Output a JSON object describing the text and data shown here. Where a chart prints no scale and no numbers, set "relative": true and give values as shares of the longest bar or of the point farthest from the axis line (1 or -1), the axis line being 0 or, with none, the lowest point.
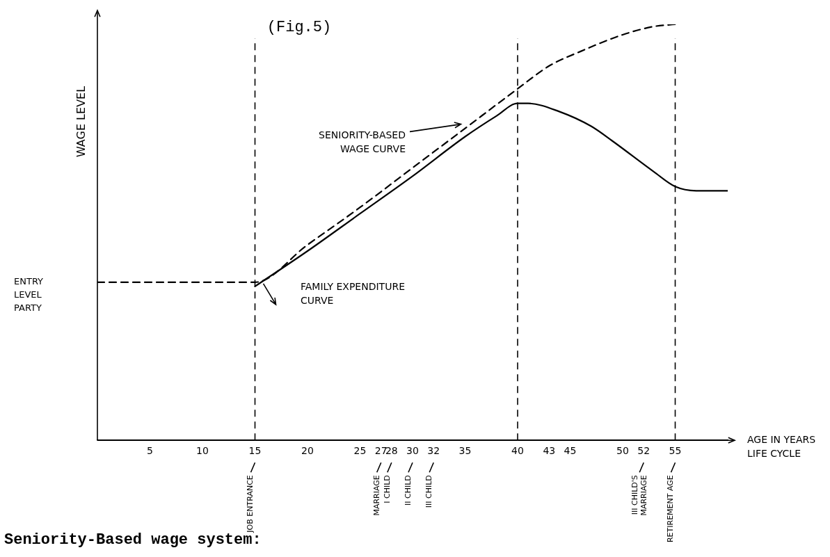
{
  "chart_data": {
    "type": "line",
    "title": "(Fig.5)",
    "xlabel": "AGE IN YEARS LIFE CYCLE",
    "ylabel": "WAGE LEVEL",
    "relative": true,
    "xlim": [
      0,
      60
    ],
    "xticks": [
      5,
      10,
      15,
      20,
      25,
      27,
      28,
      30,
      32,
      35,
      40,
      43,
      45,
      50,
      52,
      55
    ],
    "grid": false,
    "legend": false,
    "marker": "none",
    "series": [
      {
        "name": "SENIORITY-BASED WAGE CURVE",
        "color": "#000000",
        "line_style": "dashed",
        "x": [
          0,
          15,
          20,
          25,
          30,
          35,
          40,
          43,
          46,
          50,
          53,
          55
        ],
        "values": [
          0.38,
          0.38,
          0.47,
          0.56,
          0.655,
          0.75,
          0.845,
          0.9,
          0.935,
          0.975,
          0.995,
          1.0
        ]
      },
      {
        "name": "FAMILY EXPENDITURE CURVE",
        "color": "#000000",
        "line_style": "solid",
        "x": [
          15,
          20,
          25,
          30,
          35,
          38,
          40,
          41,
          44,
          47,
          49,
          53,
          55,
          57,
          60
        ],
        "values": [
          0.37,
          0.455,
          0.545,
          0.635,
          0.73,
          0.78,
          0.81,
          0.81,
          0.79,
          0.755,
          0.72,
          0.645,
          0.61,
          0.6,
          0.6
        ]
      }
    ],
    "ref_lines": [
      {
        "axis": "x",
        "value": 15,
        "line_style": "dashed"
      },
      {
        "axis": "x",
        "value": 40,
        "line_style": "dashed"
      },
      {
        "axis": "x",
        "value": 55,
        "line_style": "dashed"
      }
    ],
    "annotations": [
      "ENTRY LEVEL PARTY",
      "JOB ENTRANCE",
      "MARRIAGE",
      "I CHILD",
      "II CHILD",
      "III CHILD",
      "III CHILD'S MARRIAGE",
      "RETIREMENT AGE",
      "Seniority-Based wage system:"
    ]
  }
}
